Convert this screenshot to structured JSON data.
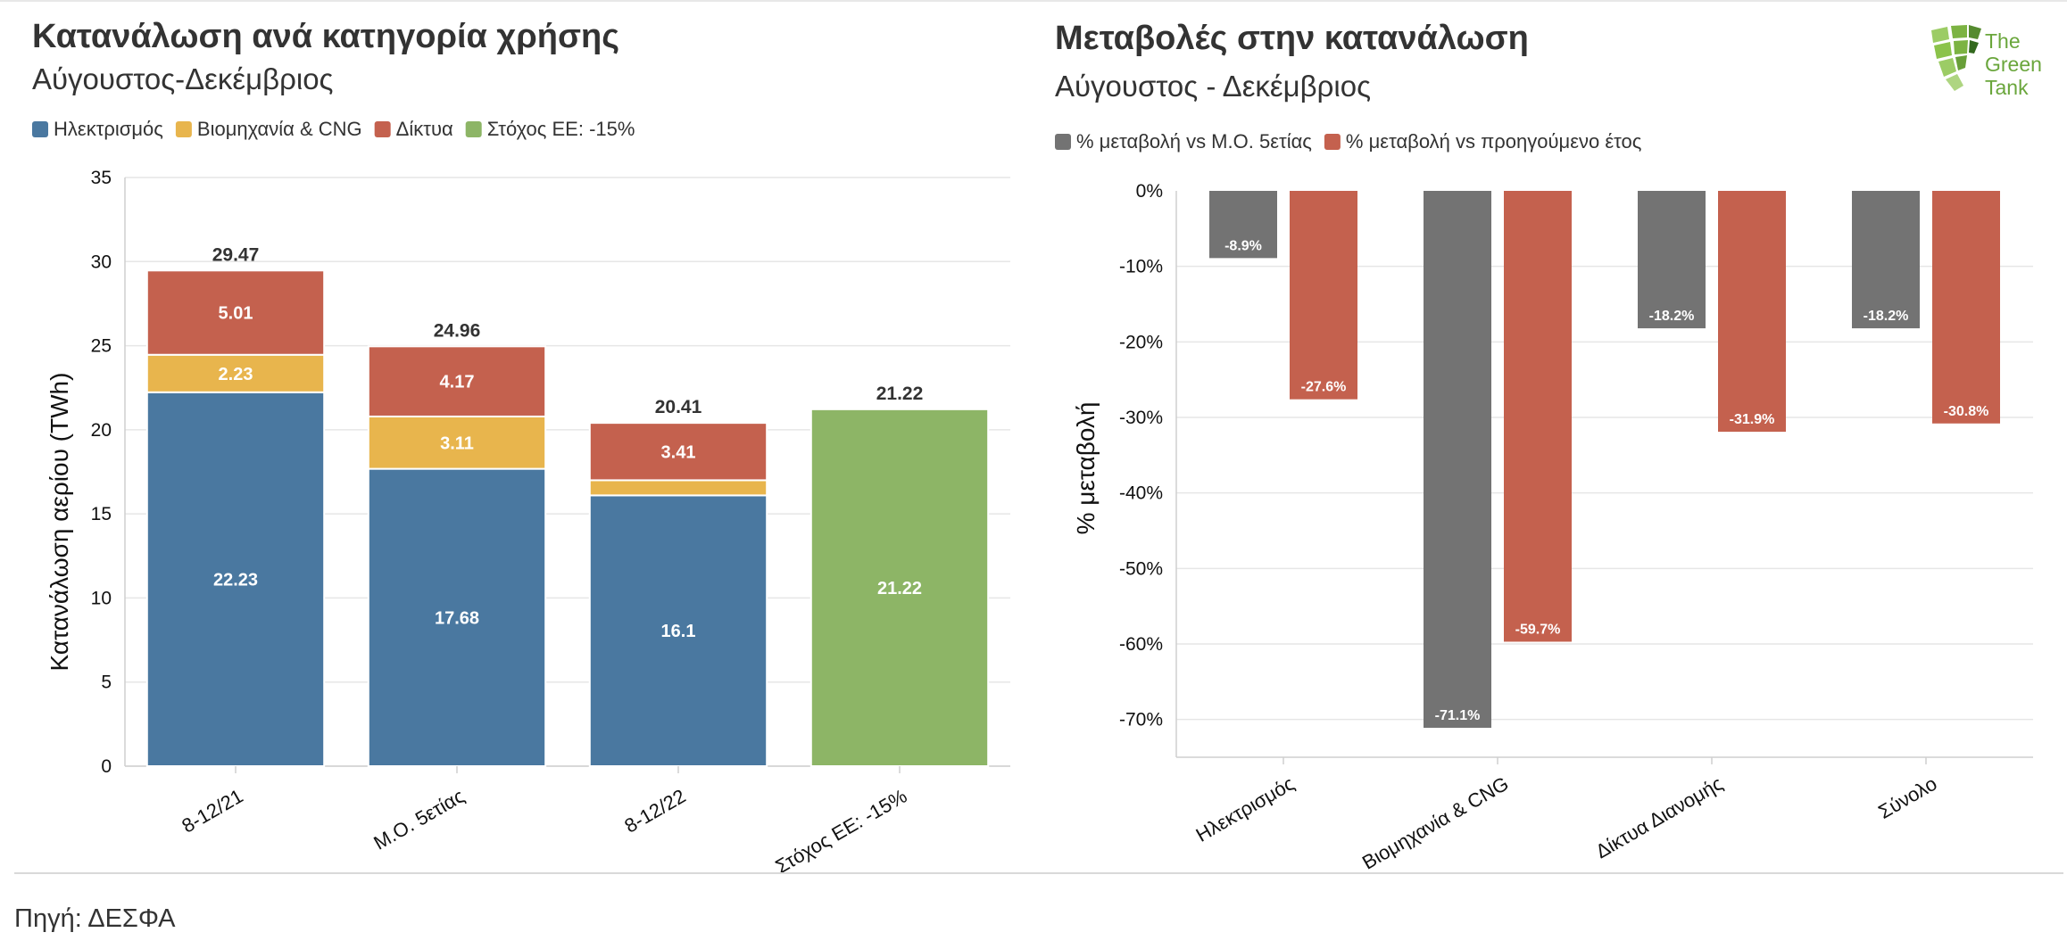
{
  "source": "Πηγή: ΔΕΣΦΑ",
  "logo": {
    "lines": [
      "The",
      "Green",
      "Tank"
    ]
  },
  "chart_data": [
    {
      "type": "bar",
      "stacked": true,
      "title": "Κατανάλωση ανά κατηγορία χρήσης",
      "subtitle": "Αύγουστος-Δεκέμβριος",
      "ylabel": "Κατανάλωση αερίου (TWh)",
      "xlabel": "",
      "ylim": [
        0,
        35
      ],
      "yticks": [
        0,
        5,
        10,
        15,
        20,
        25,
        30,
        35
      ],
      "grid": true,
      "legend_position": "top-left",
      "categories": [
        "8-12/21",
        "Μ.Ο. 5ετίας",
        "8-12/22",
        "Στόχος ΕΕ: -15%"
      ],
      "series": [
        {
          "name": "Ηλεκτρισμός",
          "color": "#4a78a0",
          "values": [
            22.23,
            17.68,
            16.1,
            null
          ],
          "labels": [
            "22.23",
            "17.68",
            "16.1",
            ""
          ]
        },
        {
          "name": "Βιομηχανία & CNG",
          "color": "#e8b54d",
          "values": [
            2.23,
            3.11,
            0.9,
            null
          ],
          "labels": [
            "2.23",
            "3.11",
            "",
            ""
          ]
        },
        {
          "name": "Δίκτυα",
          "color": "#c4614e",
          "values": [
            5.01,
            4.17,
            3.41,
            null
          ],
          "labels": [
            "5.01",
            "4.17",
            "3.41",
            ""
          ]
        },
        {
          "name": "Στόχος ΕΕ: -15%",
          "color": "#8db566",
          "values": [
            null,
            null,
            null,
            21.22
          ],
          "labels": [
            "",
            "",
            "",
            "21.22"
          ]
        }
      ],
      "totals": [
        "29.47",
        "24.96",
        "20.41",
        "21.22"
      ]
    },
    {
      "type": "bar",
      "title": "Μεταβολές στην κατανάλωση",
      "subtitle": "Αύγουστος - Δεκέμβριος",
      "ylabel": "% μεταβολή",
      "xlabel": "",
      "ylim": [
        -75,
        0
      ],
      "yticks": [
        0,
        -10,
        -20,
        -30,
        -40,
        -50,
        -60,
        -70
      ],
      "ytick_labels": [
        "0%",
        "-10%",
        "-20%",
        "-30%",
        "-40%",
        "-50%",
        "-60%",
        "-70%"
      ],
      "grid": true,
      "legend_position": "top-left",
      "categories": [
        "Ηλεκτρισμός",
        "Βιομηχανία & CNG",
        "Δίκτυα Διανομής",
        "Σύνολο"
      ],
      "series": [
        {
          "name": "% μεταβολή vs Μ.Ο. 5ετίας",
          "color": "#737373",
          "values": [
            -8.9,
            -71.1,
            -18.2,
            -18.2
          ],
          "labels": [
            "-8.9%",
            "-71.1%",
            "-18.2%",
            "-18.2%"
          ]
        },
        {
          "name": "% μεταβολή vs προηγούμενο έτος",
          "color": "#c4614e",
          "values": [
            -27.6,
            -59.7,
            -31.9,
            -30.8
          ],
          "labels": [
            "-27.6%",
            "-59.7%",
            "-31.9%",
            "-30.8%"
          ]
        }
      ]
    }
  ]
}
